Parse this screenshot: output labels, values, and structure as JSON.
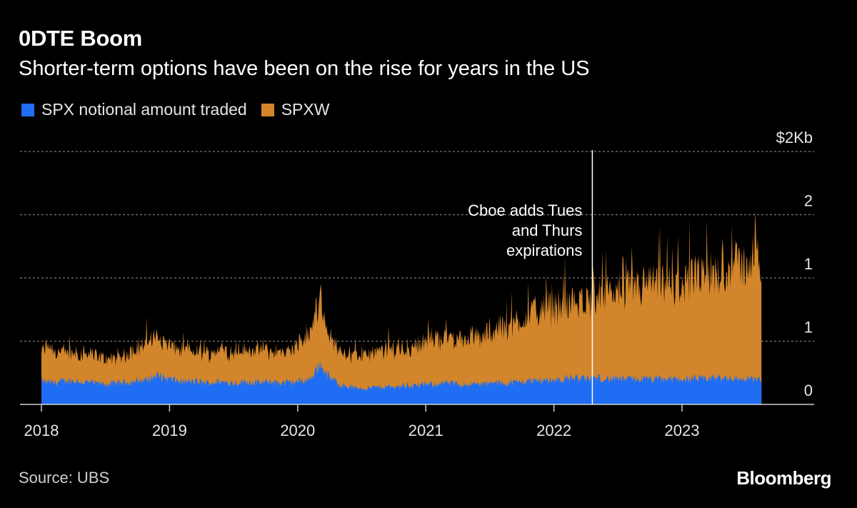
{
  "header": {
    "title": "0DTE Boom",
    "subtitle": "Shorter-term options have been on the rise for years in the US"
  },
  "legend": {
    "items": [
      {
        "label": "SPX notional amount traded",
        "color": "#1f6df2"
      },
      {
        "label": "SPXW",
        "color": "#d2852a"
      }
    ]
  },
  "footer": {
    "source": "Source: UBS",
    "brand": "Bloomberg"
  },
  "chart_data": {
    "type": "area",
    "stacked": true,
    "title": "0DTE Boom",
    "subtitle": "Shorter-term options have been on the rise for years in the US",
    "xlabel": "",
    "ylabel": "",
    "x_range": [
      2018.0,
      2023.62
    ],
    "ylim": [
      0,
      2.0
    ],
    "y_ticks": [
      {
        "value": 0.0,
        "label": "0"
      },
      {
        "value": 0.5,
        "label": "1"
      },
      {
        "value": 1.0,
        "label": "1"
      },
      {
        "value": 1.5,
        "label": "2"
      },
      {
        "value": 2.0,
        "label": "$2Kb"
      }
    ],
    "x_ticks": [
      {
        "value": 2018,
        "label": "2018"
      },
      {
        "value": 2019,
        "label": "2019"
      },
      {
        "value": 2020,
        "label": "2020"
      },
      {
        "value": 2021,
        "label": "2021"
      },
      {
        "value": 2022,
        "label": "2022"
      },
      {
        "value": 2023,
        "label": "2023"
      }
    ],
    "grid": true,
    "series": [
      {
        "name": "SPX notional amount traded",
        "color": "#1f6df2",
        "points": [
          [
            2018.0,
            0.18
          ],
          [
            2018.1,
            0.17
          ],
          [
            2018.2,
            0.19
          ],
          [
            2018.3,
            0.18
          ],
          [
            2018.4,
            0.17
          ],
          [
            2018.5,
            0.16
          ],
          [
            2018.6,
            0.17
          ],
          [
            2018.7,
            0.18
          ],
          [
            2018.8,
            0.19
          ],
          [
            2018.9,
            0.23
          ],
          [
            2019.0,
            0.2
          ],
          [
            2019.1,
            0.18
          ],
          [
            2019.2,
            0.18
          ],
          [
            2019.3,
            0.17
          ],
          [
            2019.4,
            0.18
          ],
          [
            2019.5,
            0.17
          ],
          [
            2019.6,
            0.18
          ],
          [
            2019.7,
            0.17
          ],
          [
            2019.8,
            0.18
          ],
          [
            2019.9,
            0.17
          ],
          [
            2020.0,
            0.18
          ],
          [
            2020.1,
            0.2
          ],
          [
            2020.17,
            0.32
          ],
          [
            2020.25,
            0.21
          ],
          [
            2020.35,
            0.15
          ],
          [
            2020.45,
            0.13
          ],
          [
            2020.55,
            0.13
          ],
          [
            2020.65,
            0.14
          ],
          [
            2020.75,
            0.14
          ],
          [
            2020.85,
            0.15
          ],
          [
            2020.95,
            0.15
          ],
          [
            2021.05,
            0.16
          ],
          [
            2021.15,
            0.17
          ],
          [
            2021.25,
            0.16
          ],
          [
            2021.35,
            0.16
          ],
          [
            2021.45,
            0.16
          ],
          [
            2021.55,
            0.17
          ],
          [
            2021.65,
            0.17
          ],
          [
            2021.75,
            0.18
          ],
          [
            2021.85,
            0.19
          ],
          [
            2021.95,
            0.19
          ],
          [
            2022.05,
            0.2
          ],
          [
            2022.15,
            0.21
          ],
          [
            2022.25,
            0.2
          ],
          [
            2022.35,
            0.21
          ],
          [
            2022.45,
            0.2
          ],
          [
            2022.55,
            0.2
          ],
          [
            2022.65,
            0.2
          ],
          [
            2022.75,
            0.2
          ],
          [
            2022.85,
            0.2
          ],
          [
            2022.95,
            0.2
          ],
          [
            2023.05,
            0.2
          ],
          [
            2023.15,
            0.2
          ],
          [
            2023.25,
            0.21
          ],
          [
            2023.35,
            0.21
          ],
          [
            2023.45,
            0.2
          ],
          [
            2023.55,
            0.2
          ],
          [
            2023.62,
            0.19
          ]
        ]
      },
      {
        "name": "SPXW",
        "color": "#d2852a",
        "points": [
          [
            2018.0,
            0.23
          ],
          [
            2018.05,
            0.3
          ],
          [
            2018.1,
            0.25
          ],
          [
            2018.2,
            0.22
          ],
          [
            2018.3,
            0.22
          ],
          [
            2018.4,
            0.22
          ],
          [
            2018.5,
            0.2
          ],
          [
            2018.6,
            0.19
          ],
          [
            2018.7,
            0.24
          ],
          [
            2018.8,
            0.28
          ],
          [
            2018.9,
            0.3
          ],
          [
            2019.0,
            0.27
          ],
          [
            2019.1,
            0.24
          ],
          [
            2019.2,
            0.24
          ],
          [
            2019.3,
            0.23
          ],
          [
            2019.4,
            0.26
          ],
          [
            2019.5,
            0.24
          ],
          [
            2019.6,
            0.25
          ],
          [
            2019.7,
            0.25
          ],
          [
            2019.8,
            0.24
          ],
          [
            2019.9,
            0.24
          ],
          [
            2020.0,
            0.28
          ],
          [
            2020.1,
            0.33
          ],
          [
            2020.17,
            0.55
          ],
          [
            2020.25,
            0.32
          ],
          [
            2020.35,
            0.26
          ],
          [
            2020.45,
            0.25
          ],
          [
            2020.55,
            0.26
          ],
          [
            2020.65,
            0.28
          ],
          [
            2020.75,
            0.3
          ],
          [
            2020.85,
            0.29
          ],
          [
            2020.95,
            0.32
          ],
          [
            2021.05,
            0.36
          ],
          [
            2021.15,
            0.35
          ],
          [
            2021.25,
            0.36
          ],
          [
            2021.35,
            0.37
          ],
          [
            2021.45,
            0.38
          ],
          [
            2021.55,
            0.42
          ],
          [
            2021.65,
            0.44
          ],
          [
            2021.75,
            0.5
          ],
          [
            2021.85,
            0.55
          ],
          [
            2021.95,
            0.55
          ],
          [
            2022.05,
            0.58
          ],
          [
            2022.15,
            0.6
          ],
          [
            2022.25,
            0.62
          ],
          [
            2022.35,
            0.62
          ],
          [
            2022.45,
            0.68
          ],
          [
            2022.55,
            0.7
          ],
          [
            2022.65,
            0.72
          ],
          [
            2022.75,
            0.75
          ],
          [
            2022.85,
            0.74
          ],
          [
            2022.95,
            0.72
          ],
          [
            2023.05,
            0.78
          ],
          [
            2023.15,
            0.8
          ],
          [
            2023.25,
            0.82
          ],
          [
            2023.35,
            0.86
          ],
          [
            2023.45,
            0.9
          ],
          [
            2023.55,
            0.95
          ],
          [
            2023.62,
            0.9
          ]
        ]
      }
    ],
    "annotations": [
      {
        "x": 2022.3,
        "lines": [
          "Cboe adds Tues",
          "and Thurs",
          "expirations"
        ]
      }
    ]
  }
}
